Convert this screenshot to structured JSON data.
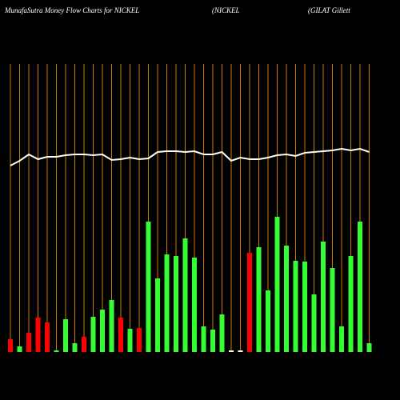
{
  "chart_data": {
    "type": "bar",
    "title": "MunafaSutra  Money Flow  Charts for NICKEL",
    "subtitle": "(NICKEL",
    "annotation": "(GILAT Gillett",
    "categories": [
      null,
      null,
      null,
      null,
      null,
      null,
      null,
      null,
      null,
      null,
      null,
      null,
      null,
      null,
      null,
      null,
      null,
      null,
      null,
      null,
      null,
      null,
      null,
      null,
      null,
      null,
      null,
      null,
      null,
      null,
      null,
      null,
      null,
      null,
      null,
      null,
      null,
      null,
      null,
      null
    ],
    "series": [
      {
        "values": [
          16,
          7,
          24,
          43,
          37,
          2,
          41,
          11,
          19,
          44,
          53,
          65,
          43,
          29,
          30,
          163,
          92,
          122,
          120,
          142,
          118,
          32,
          28,
          47,
          2,
          2,
          124,
          131,
          77,
          169,
          133,
          114,
          113,
          72,
          138,
          105,
          32,
          120,
          163,
          11
        ],
        "colors": [
          "#ff0000",
          "#33ff33",
          "#ff0000",
          "#ff0000",
          "#ff0000",
          "#33ff33",
          "#33ff33",
          "#33ff33",
          "#ff0000",
          "#33ff33",
          "#33ff33",
          "#33ff33",
          "#ff0000",
          "#33ff33",
          "#ff0000",
          "#33ff33",
          "#33ff33",
          "#33ff33",
          "#33ff33",
          "#33ff33",
          "#33ff33",
          "#33ff33",
          "#33ff33",
          "#33ff33",
          "#ffffff",
          "#ffffff",
          "#ff0000",
          "#33ff33",
          "#33ff33",
          "#33ff33",
          "#33ff33",
          "#33ff33",
          "#33ff33",
          "#33ff33",
          "#33ff33",
          "#33ff33",
          "#33ff33",
          "#33ff33",
          "#33ff33",
          "#33ff33"
        ]
      },
      {
        "type": "line",
        "color": "#ffffff",
        "values": [
          233,
          239,
          247,
          241,
          244,
          244,
          246,
          247,
          247,
          246,
          247,
          240,
          241,
          243,
          241,
          242,
          250,
          251,
          251,
          250,
          251,
          247,
          247,
          250,
          239,
          243,
          241,
          241,
          243,
          246,
          247,
          245,
          249,
          250,
          251,
          252,
          254,
          252,
          254,
          250
        ]
      }
    ],
    "ylim": [
      0,
      360
    ],
    "grid_color": "#cc7a00"
  }
}
